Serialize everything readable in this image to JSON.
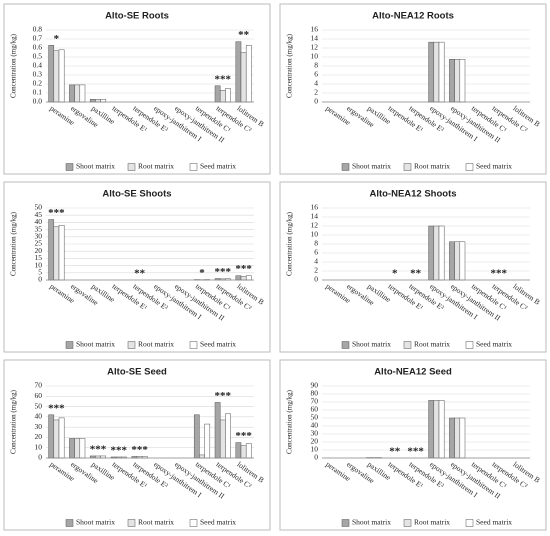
{
  "chart_data": [
    {
      "type": "bar",
      "title": "Alto-SE Roots",
      "y_label": "Concentration (mg/kg)",
      "categories": [
        "peramine",
        "ergovaline",
        "paxilline",
        "terpendole E¹",
        "terpendole E²",
        "epoxy-janthitrem I",
        "epoxy-janthitrem II",
        "terpendole C¹",
        "terpendole C²",
        "lolitrem B"
      ],
      "series": [
        {
          "name": "Shoot matrix",
          "color": "#a6a6a6",
          "values": [
            0.63,
            0.19,
            0.03,
            0,
            0,
            0,
            0,
            0,
            0.18,
            0.67
          ]
        },
        {
          "name": "Root matrix",
          "color": "#e4e4e4",
          "values": [
            0.57,
            0.19,
            0.03,
            0,
            0,
            0,
            0,
            0,
            0.13,
            0.55
          ]
        },
        {
          "name": "Seed matrix",
          "color": "#ffffff",
          "values": [
            0.58,
            0.19,
            0.03,
            0,
            0,
            0,
            0,
            0,
            0.15,
            0.63
          ]
        }
      ],
      "ylim": [
        0,
        0.8
      ],
      "yticks": [
        {
          "value": 0,
          "label": "0.0"
        },
        0.1,
        0.2,
        0.3,
        0.4,
        0.5,
        0.6,
        0.7,
        0.8
      ],
      "grid": true,
      "annotations": [
        {
          "category": "peramine",
          "text": "*"
        },
        {
          "category": "terpendole C²",
          "text": "***"
        },
        {
          "category": "lolitrem B",
          "text": "**"
        }
      ]
    },
    {
      "type": "bar",
      "title": "Alto-NEA12 Roots",
      "y_label": "Concentration (mg/kg)",
      "categories": [
        "peramine",
        "ergovaline",
        "paxilline",
        "terpendole E¹",
        "terpendole E²",
        "epoxy-janthitrem I",
        "epoxy-janthitrem II",
        "terpendole C¹",
        "terpendole C²",
        "lolitrem B"
      ],
      "series": [
        {
          "name": "Shoot matrix",
          "color": "#a6a6a6",
          "values": [
            0,
            0,
            0,
            0,
            0,
            13.3,
            9.5,
            0,
            0,
            0
          ]
        },
        {
          "name": "Root matrix",
          "color": "#e4e4e4",
          "values": [
            0,
            0,
            0,
            0,
            0,
            13.3,
            9.5,
            0,
            0,
            0
          ]
        },
        {
          "name": "Seed matrix",
          "color": "#ffffff",
          "values": [
            0,
            0,
            0,
            0,
            0,
            13.3,
            9.5,
            0,
            0,
            0
          ]
        }
      ],
      "ylim": [
        0,
        16
      ],
      "yticks": [
        0,
        2,
        4,
        6,
        8,
        10,
        12,
        14,
        16
      ],
      "grid": true,
      "annotations": []
    },
    {
      "type": "bar",
      "title": "Alto-SE Shoots",
      "y_label": "Concentration (mg/kg)",
      "categories": [
        "peramine",
        "ergovaline",
        "paxilline",
        "terpendole E¹",
        "terpendole E²",
        "epoxy-janthitrem I",
        "epoxy-janthitrem II",
        "terpendole C¹",
        "terpendole C²",
        "lolitrem B"
      ],
      "series": [
        {
          "name": "Shoot matrix",
          "color": "#a6a6a6",
          "values": [
            42,
            0,
            0,
            0,
            0,
            0,
            0,
            0.3,
            1,
            3
          ]
        },
        {
          "name": "Root matrix",
          "color": "#e4e4e4",
          "values": [
            37,
            0,
            0,
            0,
            0,
            0,
            0,
            0.2,
            0.8,
            2.5
          ]
        },
        {
          "name": "Seed matrix",
          "color": "#ffffff",
          "values": [
            38,
            0,
            0,
            0,
            0,
            0,
            0,
            0.3,
            0.9,
            3
          ]
        }
      ],
      "ylim": [
        0,
        50
      ],
      "yticks": [
        0,
        5,
        10,
        15,
        20,
        25,
        30,
        35,
        40,
        45,
        50
      ],
      "grid": true,
      "annotations": [
        {
          "category": "peramine",
          "text": "***"
        },
        {
          "category": "terpendole E²",
          "text": "**"
        },
        {
          "category": "terpendole C¹",
          "text": "*"
        },
        {
          "category": "terpendole C²",
          "text": "***"
        },
        {
          "category": "lolitrem B",
          "text": "***"
        }
      ]
    },
    {
      "type": "bar",
      "title": "Alto-NEA12 Shoots",
      "y_label": "Concentration (mg/kg)",
      "categories": [
        "peramine",
        "ergovaline",
        "paxilline",
        "terpendole E¹",
        "terpendole E²",
        "epoxy-janthitrem I",
        "epoxy-janthitrem II",
        "terpendole C¹",
        "terpendole C²",
        "lolitrem B"
      ],
      "series": [
        {
          "name": "Shoot matrix",
          "color": "#a6a6a6",
          "values": [
            0,
            0,
            0,
            0,
            0,
            12,
            8.5,
            0,
            0,
            0
          ]
        },
        {
          "name": "Root matrix",
          "color": "#e4e4e4",
          "values": [
            0,
            0,
            0,
            0,
            0,
            12,
            8.5,
            0,
            0,
            0
          ]
        },
        {
          "name": "Seed matrix",
          "color": "#ffffff",
          "values": [
            0,
            0,
            0,
            0,
            0,
            12,
            8.5,
            0,
            0,
            0
          ]
        }
      ],
      "ylim": [
        0,
        16
      ],
      "yticks": [
        0,
        2,
        4,
        6,
        8,
        10,
        12,
        14,
        16
      ],
      "grid": true,
      "annotations": [
        {
          "category": "terpendole E¹",
          "text": "*"
        },
        {
          "category": "terpendole E²",
          "text": "**"
        },
        {
          "category": "terpendole C²",
          "text": "***"
        }
      ]
    },
    {
      "type": "bar",
      "title": "Alto-SE Seed",
      "y_label": "Concentration (mg/kg)",
      "categories": [
        "peramine",
        "ergovaline",
        "paxilline",
        "terpendole E¹",
        "terpendole E²",
        "epoxy-janthitrem I",
        "epoxy-janthitrem II",
        "terpendole C¹",
        "terpendole C²",
        "lolitrem B"
      ],
      "series": [
        {
          "name": "Shoot matrix",
          "color": "#a6a6a6",
          "values": [
            42,
            19,
            2,
            1,
            1.5,
            0,
            0,
            42,
            54,
            15
          ]
        },
        {
          "name": "Root matrix",
          "color": "#e4e4e4",
          "values": [
            37,
            19,
            2,
            1,
            1.5,
            0,
            0,
            3,
            37,
            12
          ]
        },
        {
          "name": "Seed matrix",
          "color": "#ffffff",
          "values": [
            39,
            19,
            2,
            1,
            1.5,
            0,
            0,
            33,
            43,
            14
          ]
        }
      ],
      "ylim": [
        0,
        70
      ],
      "yticks": [
        0,
        10,
        20,
        30,
        40,
        50,
        60,
        70
      ],
      "grid": true,
      "annotations": [
        {
          "category": "peramine",
          "text": "***"
        },
        {
          "category": "paxilline",
          "text": "***"
        },
        {
          "category": "terpendole E¹",
          "text": "***"
        },
        {
          "category": "terpendole E²",
          "text": "***"
        },
        {
          "category": "terpendole C²",
          "text": "***"
        },
        {
          "category": "lolitrem B",
          "text": "***"
        }
      ]
    },
    {
      "type": "bar",
      "title": "Alto-NEA12 Seed",
      "y_label": "Concentration (mg/kg)",
      "categories": [
        "peramine",
        "ergovaline",
        "paxilline",
        "terpendole E¹",
        "terpendole E²",
        "epoxy-janthitrem I",
        "epoxy-janthitrem II",
        "terpendole C¹",
        "terpendole C²",
        "lolitrem B"
      ],
      "series": [
        {
          "name": "Shoot matrix",
          "color": "#a6a6a6",
          "values": [
            0,
            0,
            0.5,
            0,
            0,
            72,
            50,
            0,
            0,
            0
          ]
        },
        {
          "name": "Root matrix",
          "color": "#e4e4e4",
          "values": [
            0,
            0,
            0.5,
            0,
            0,
            72,
            50,
            0,
            0,
            0
          ]
        },
        {
          "name": "Seed matrix",
          "color": "#ffffff",
          "values": [
            0,
            0,
            0.5,
            0,
            0,
            72,
            50,
            0,
            0,
            0
          ]
        }
      ],
      "ylim": [
        0,
        90
      ],
      "yticks": [
        0,
        10,
        20,
        30,
        40,
        50,
        60,
        70,
        80,
        90
      ],
      "grid": true,
      "annotations": [
        {
          "category": "terpendole E¹",
          "text": "**"
        },
        {
          "category": "terpendole E²",
          "text": "***"
        }
      ]
    }
  ]
}
